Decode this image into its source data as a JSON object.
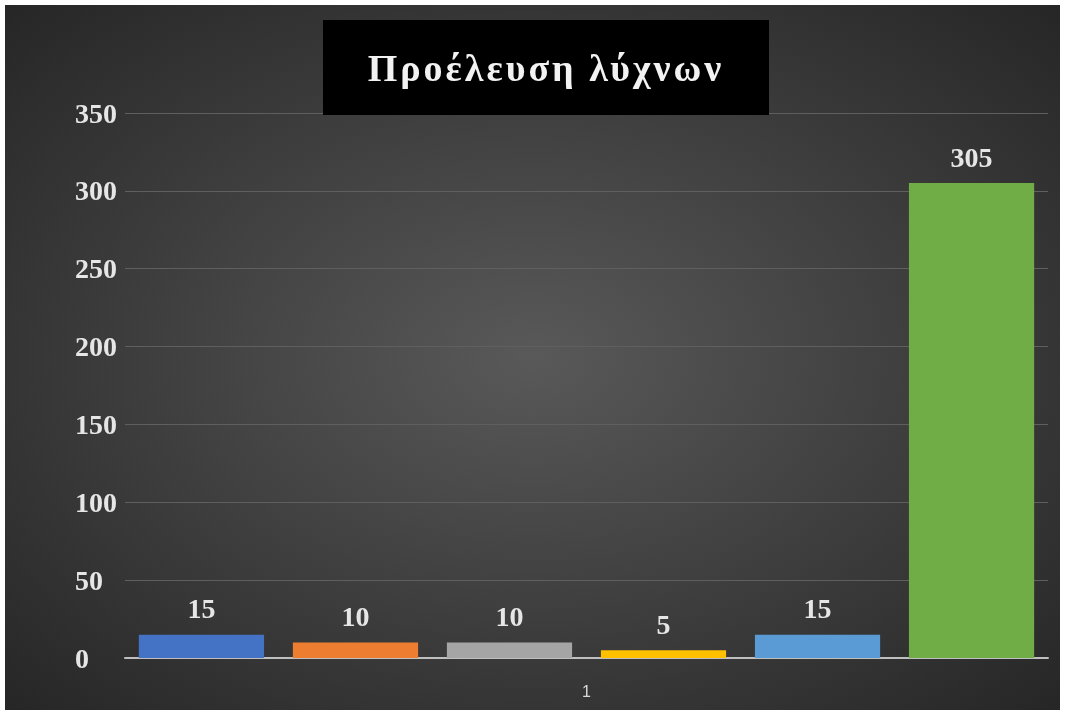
{
  "chart_data": {
    "type": "bar",
    "title": "Προέλευση λύχνων",
    "categories": [
      "1"
    ],
    "series": [
      {
        "color": "#4472c4",
        "values": [
          15
        ]
      },
      {
        "color": "#ed7d31",
        "values": [
          10
        ]
      },
      {
        "color": "#a5a5a5",
        "values": [
          10
        ]
      },
      {
        "color": "#ffc000",
        "values": [
          5
        ]
      },
      {
        "color": "#5b9bd5",
        "values": [
          15
        ]
      },
      {
        "color": "#70ad47",
        "values": [
          305
        ]
      }
    ],
    "ylim": [
      0,
      350
    ],
    "yticks": [
      0,
      50,
      100,
      150,
      200,
      250,
      300,
      350
    ],
    "grid": "y",
    "data_labels": true
  }
}
